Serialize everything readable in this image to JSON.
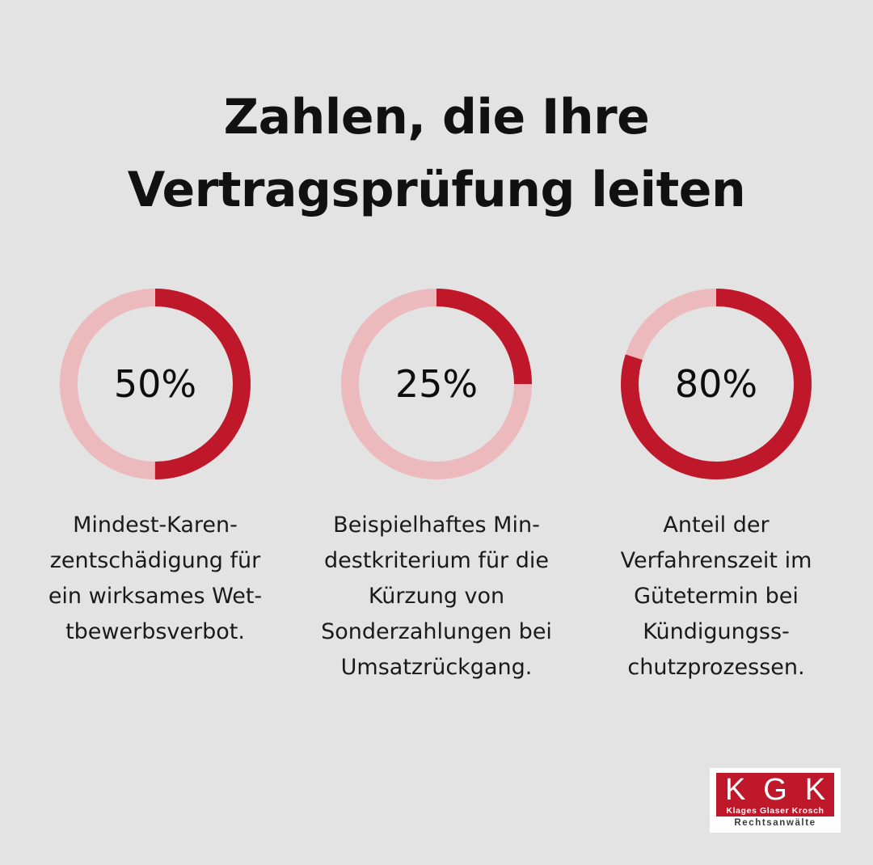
{
  "title": {
    "line1": "Zahlen, die Ihre",
    "line2": "Vertragsprüfung leiten"
  },
  "colors": {
    "background": "#e3e3e3",
    "accent": "#c0182b",
    "track": "#ecb9bd",
    "text": "#111111"
  },
  "stats": [
    {
      "value": "50%",
      "fraction": 0.5,
      "caption_lines": [
        "Mindest-Karen-",
        "zentschädigung für",
        "ein wirksames Wet-",
        "tbewerbsverbot."
      ]
    },
    {
      "value": "25%",
      "fraction": 0.25,
      "caption_lines": [
        "Beispielhaftes Min-",
        "destkriterium für die",
        "Kürzung von",
        "Sonderzahlungen bei",
        "Umsatzrückgang."
      ]
    },
    {
      "value": "80%",
      "fraction": 0.8,
      "caption_lines": [
        "Anteil der",
        "Verfahrenszeit im",
        "Gütetermin bei",
        "Kündigungss-",
        "chutzprozessen."
      ]
    }
  ],
  "logo": {
    "letters": [
      "K",
      "G",
      "K"
    ],
    "names": "Klages Glaser Krosch",
    "subtitle": "Rechtsanwälte"
  }
}
